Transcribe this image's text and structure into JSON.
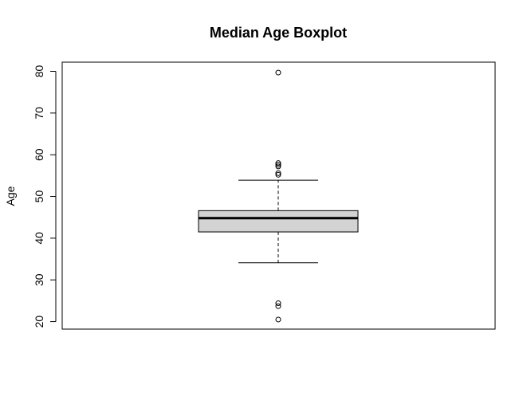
{
  "chart_data": {
    "type": "boxplot",
    "title": "Median Age Boxplot",
    "xlabel": "",
    "ylabel": "Age",
    "ylim": [
      18.2,
      82.2
    ],
    "yticks": [
      20,
      30,
      40,
      50,
      60,
      70,
      80
    ],
    "ytick_labels": [
      "20",
      "30",
      "40",
      "50",
      "60",
      "70",
      "80"
    ],
    "grid": false,
    "box": {
      "lower_whisker": 34.1,
      "q1": 41.5,
      "median": 44.8,
      "q3": 46.6,
      "upper_whisker": 53.9
    },
    "outliers": [
      79.7,
      58.0,
      57.6,
      57.2,
      55.6,
      55.2,
      24.4,
      23.7,
      20.5
    ],
    "colors": {
      "box_fill": "#d3d3d3",
      "stroke": "#000000",
      "background": "#ffffff"
    }
  }
}
